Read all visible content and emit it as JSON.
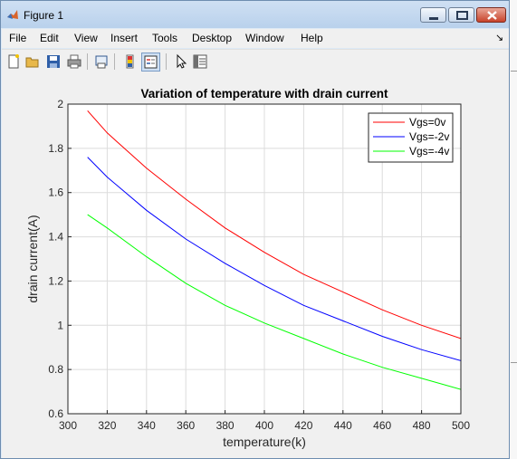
{
  "window": {
    "title": "Figure 1",
    "icon": "matlab-icon"
  },
  "menu": [
    "File",
    "Edit",
    "View",
    "Insert",
    "Tools",
    "Desktop",
    "Window",
    "Help"
  ],
  "menu_overflow_icon": "arrow-icon",
  "toolbar": {
    "icons": [
      "new-figure-icon",
      "open-file-icon",
      "save-icon",
      "print-icon",
      "print-preview-icon",
      "colorbar-icon",
      "legend-icon",
      "edit-plot-icon",
      "property-inspector-icon"
    ]
  },
  "colors": {
    "series_red": "#ff0000",
    "series_blue": "#0000ff",
    "series_green": "#00ff00",
    "axes_bg": "#ffffff",
    "figure_bg": "#f0f0f0"
  },
  "chart_data": {
    "type": "line",
    "title": "Variation of temperature with drain current",
    "xlabel": "temperature(k)",
    "ylabel": "drain current(A)",
    "xlim": [
      300,
      500
    ],
    "ylim": [
      0.6,
      2
    ],
    "xticks": [
      "300",
      "320",
      "340",
      "360",
      "380",
      "400",
      "420",
      "440",
      "460",
      "480",
      "500"
    ],
    "yticks": [
      "0.6",
      "0.8",
      "1",
      "1.2",
      "1.4",
      "1.6",
      "1.8",
      "2"
    ],
    "grid": true,
    "legend_position": "top-right",
    "x": [
      310,
      320,
      340,
      360,
      380,
      400,
      420,
      440,
      460,
      480,
      500
    ],
    "series": [
      {
        "name": "Vgs=0v",
        "color": "#ff0000",
        "values": [
          1.97,
          1.87,
          1.71,
          1.57,
          1.44,
          1.33,
          1.23,
          1.15,
          1.07,
          1.0,
          0.94
        ]
      },
      {
        "name": "Vgs=-2v",
        "color": "#0000ff",
        "values": [
          1.76,
          1.67,
          1.52,
          1.39,
          1.28,
          1.18,
          1.09,
          1.02,
          0.95,
          0.89,
          0.84
        ]
      },
      {
        "name": "Vgs=-4v",
        "color": "#00ff00",
        "values": [
          1.5,
          1.44,
          1.31,
          1.19,
          1.09,
          1.01,
          0.94,
          0.87,
          0.81,
          0.76,
          0.71
        ]
      }
    ]
  }
}
